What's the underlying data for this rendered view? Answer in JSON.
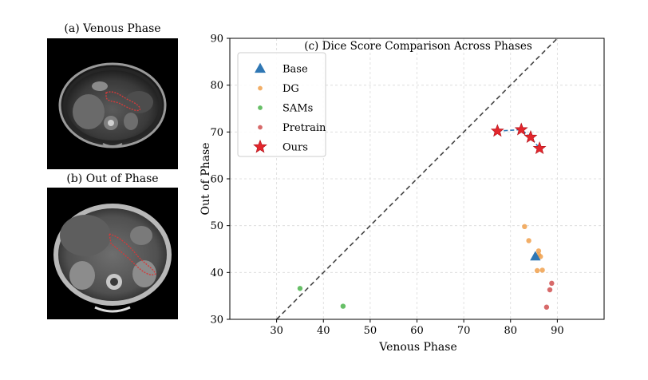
{
  "panels": {
    "a_title": "(a) Venous Phase",
    "b_title": "(b) Out of Phase"
  },
  "colors": {
    "base": "#2f77b4",
    "dg": "#f0a04c",
    "sams": "#4cb44c",
    "pretrain": "#d05050",
    "ours": "#e3262c",
    "ours_line": "#2f77b4",
    "diagonal": "#444444",
    "contour": "#d13b3b"
  },
  "chart_data": {
    "type": "scatter",
    "title": "(c) Dice Score Comparison Across Phases",
    "xlabel": "Venous Phase",
    "ylabel": "Out of Phase",
    "xlim": [
      20,
      100
    ],
    "ylim": [
      30,
      90
    ],
    "xticks": [
      30,
      40,
      50,
      60,
      70,
      80,
      90
    ],
    "yticks": [
      30,
      40,
      50,
      60,
      70,
      80,
      90
    ],
    "grid": true,
    "legend_position": "upper-left",
    "diagonal_reference_line": true,
    "series": [
      {
        "name": "Base",
        "marker": "triangle",
        "x": [
          85.3
        ],
        "y": [
          43.4
        ]
      },
      {
        "name": "DG",
        "marker": "circle",
        "x": [
          83.0,
          83.9,
          86.0,
          86.0,
          86.4,
          85.5,
          86.8,
          85.7
        ],
        "y": [
          49.8,
          46.8,
          44.6,
          43.8,
          43.4,
          43.2,
          40.5,
          40.4
        ]
      },
      {
        "name": "SAMs",
        "marker": "circle",
        "x": [
          35.0,
          44.2
        ],
        "y": [
          36.6,
          32.8
        ]
      },
      {
        "name": "Pretrain",
        "marker": "circle",
        "x": [
          88.8,
          88.4,
          87.7
        ],
        "y": [
          37.7,
          36.3,
          32.6
        ]
      },
      {
        "name": "Ours",
        "marker": "star",
        "connected": true,
        "x": [
          77.2,
          82.3,
          84.3,
          86.2
        ],
        "y": [
          70.2,
          70.5,
          68.9,
          66.5
        ]
      }
    ]
  }
}
